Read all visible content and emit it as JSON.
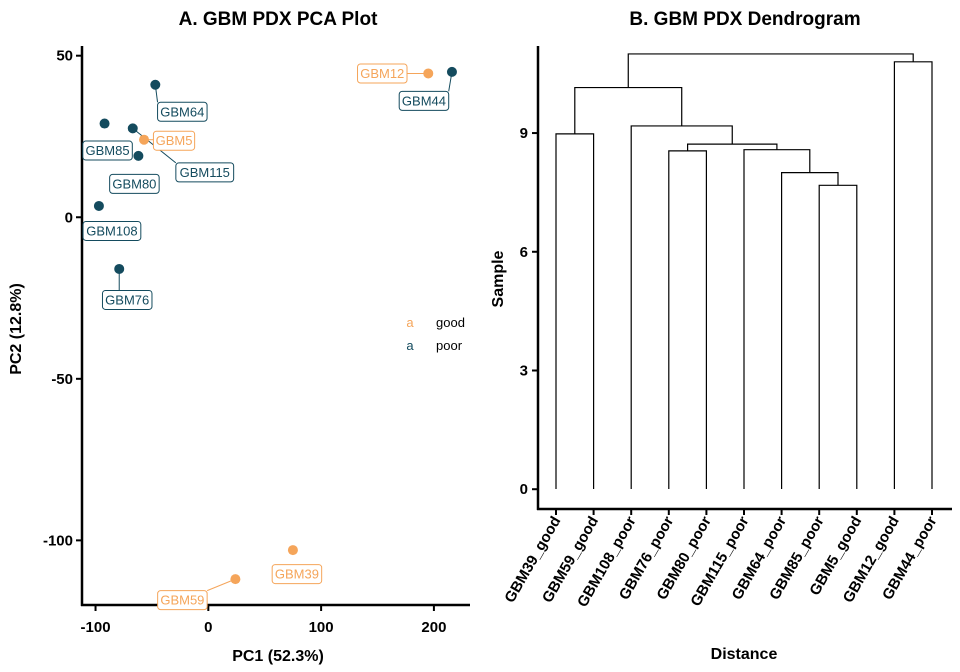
{
  "colors": {
    "good": "#F5A55A",
    "poor": "#144B5E"
  },
  "chart_data": [
    {
      "type": "scatter",
      "title": "A. GBM PDX PCA Plot",
      "xlabel": "PC1 (52.3%)",
      "ylabel": "PC2 (12.8%)",
      "xlim": [
        -112,
        232
      ],
      "ylim": [
        -120,
        53
      ],
      "xticks": [
        -100,
        0,
        100,
        200
      ],
      "yticks": [
        50,
        0,
        -50,
        -100
      ],
      "xtick_labels": [
        "-100",
        "0",
        "100",
        "200"
      ],
      "ytick_labels": [
        "50",
        "0",
        "-50",
        "-100"
      ],
      "legend": {
        "placement": "right",
        "key_glyph": "a",
        "entries": [
          {
            "label": "good",
            "group": "good"
          },
          {
            "label": "poor",
            "group": "poor"
          }
        ]
      },
      "points": [
        {
          "label": "GBM12",
          "x": 195,
          "y": 44.5,
          "group": "good"
        },
        {
          "label": "GBM44",
          "x": 216,
          "y": 45,
          "group": "poor"
        },
        {
          "label": "GBM64",
          "x": -47,
          "y": 41,
          "group": "poor"
        },
        {
          "label": "GBM85",
          "x": -92,
          "y": 29,
          "group": "poor"
        },
        {
          "label": "GBM115",
          "x": -67,
          "y": 27.5,
          "group": "poor"
        },
        {
          "label": "GBM5",
          "x": -57,
          "y": 24,
          "group": "good"
        },
        {
          "label": "GBM80",
          "x": -62,
          "y": 19,
          "group": "poor"
        },
        {
          "label": "GBM108",
          "x": -97,
          "y": 3.5,
          "group": "poor"
        },
        {
          "label": "GBM76",
          "x": -79,
          "y": -16,
          "group": "poor"
        },
        {
          "label": "GBM39",
          "x": 75,
          "y": -103,
          "group": "good"
        },
        {
          "label": "GBM59",
          "x": 24,
          "y": -112,
          "group": "good"
        }
      ]
    },
    {
      "type": "dendrogram",
      "title": "B. GBM PDX Dendrogram",
      "xlabel": "Distance",
      "ylabel": "Sample",
      "ylim": [
        -0.5,
        11.2
      ],
      "yticks": [
        0,
        3,
        6,
        9
      ],
      "ytick_labels": [
        "0",
        "3",
        "6",
        "9"
      ],
      "leaves": [
        "GBM39_good",
        "GBM59_good",
        "GBM108_poor",
        "GBM76_poor",
        "GBM80_poor",
        "GBM115_poor",
        "GBM64_poor",
        "GBM85_poor",
        "GBM5_good",
        "GBM12_good",
        "GBM44_poor"
      ],
      "merges": [
        {
          "id": "n1",
          "left": "GBM85_poor",
          "right": "GBM5_good",
          "height": 7.68
        },
        {
          "id": "n2",
          "left": "GBM64_poor",
          "right": "n1",
          "height": 8.0
        },
        {
          "id": "n3",
          "left": "GBM115_poor",
          "right": "n2",
          "height": 8.58
        },
        {
          "id": "n4",
          "left": "GBM76_poor",
          "right": "GBM80_poor",
          "height": 8.55
        },
        {
          "id": "n5",
          "left": "n4",
          "right": "n3",
          "height": 8.72
        },
        {
          "id": "n6",
          "left": "GBM108_poor",
          "right": "n5",
          "height": 9.18
        },
        {
          "id": "n7",
          "left": "GBM39_good",
          "right": "GBM59_good",
          "height": 8.98
        },
        {
          "id": "n8",
          "left": "n7",
          "right": "n6",
          "height": 10.15
        },
        {
          "id": "n9",
          "left": "GBM12_good",
          "right": "GBM44_poor",
          "height": 10.8
        },
        {
          "id": "n10",
          "left": "n8",
          "right": "n9",
          "height": 11.0
        }
      ]
    }
  ]
}
